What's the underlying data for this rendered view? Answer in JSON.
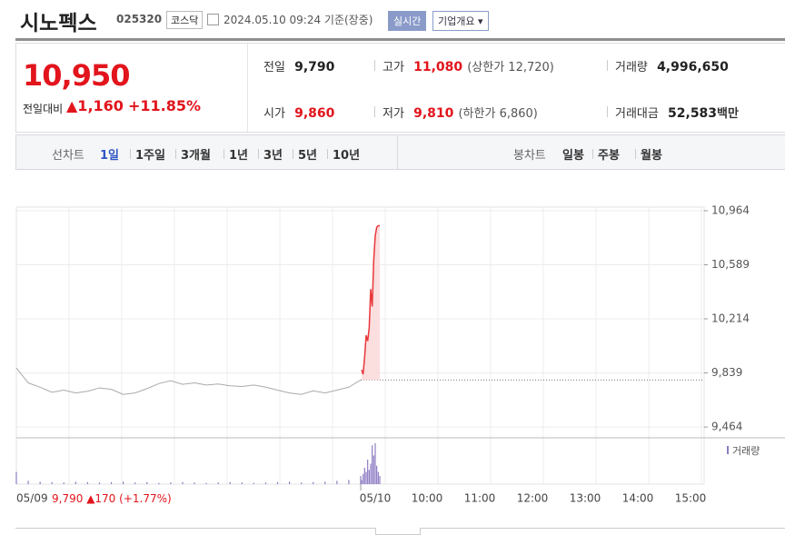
{
  "header": {
    "title": "시노펙스",
    "code": "025320",
    "market": "코스닥",
    "timestamp": "2024.05.10 09:24 기준(장중)",
    "realtime_button": "실시간",
    "company_button": "기업개요"
  },
  "summary": {
    "price": "10,950",
    "change_label": "전일대비",
    "change": "▲1,160",
    "change_rate": "+11.85%",
    "stats": [
      {
        "label": "전일",
        "value": "9,790"
      },
      {
        "label": "고가",
        "value": "11,080",
        "extra": "(상한가 12,720)"
      },
      {
        "label": "거래량",
        "value": "4,996,650"
      },
      {
        "label": "시가",
        "value": "9,860"
      },
      {
        "label": "저가",
        "value": "9,810",
        "extra": "(하한가 6,860)"
      },
      {
        "label": "거래대금",
        "value": "52,583",
        "unit": "백만"
      }
    ]
  },
  "tabs": {
    "line_chart_label": "선차트",
    "line_periods": [
      "1일",
      "1주일",
      "3개월",
      "1년",
      "3년",
      "5년",
      "10년"
    ],
    "candle_chart_label": "봉차트",
    "candle_periods": [
      "일봉",
      "주봉",
      "월봉"
    ]
  },
  "chart": {
    "type": "line",
    "ylim": [
      9389,
      10989
    ],
    "yticks": [
      {
        "value": 9464,
        "label": "9,464"
      },
      {
        "value": 9839,
        "label": "9,839"
      },
      {
        "value": 10214,
        "label": "10,214"
      },
      {
        "value": 10589,
        "label": "10,589"
      },
      {
        "value": 10964,
        "label": "10,964"
      }
    ],
    "x_labels": [
      "05/09",
      "05/10",
      "10:00",
      "11:00",
      "12:00",
      "13:00",
      "14:00",
      "15:00"
    ],
    "prev_close": 9790,
    "series": [
      {
        "color": "#aaaaaa",
        "values": [
          9874,
          9770,
          9740,
          9705,
          9720,
          9700,
          9712,
          9735,
          9725,
          9690,
          9700,
          9730,
          9765,
          9785,
          9760,
          9770,
          9755,
          9762,
          9750,
          9745,
          9755,
          9740,
          9720,
          9700,
          9690,
          9715,
          9700,
          9720,
          9740,
          9790
        ]
      },
      {
        "color": "#e8373b",
        "values": [
          9860,
          9830,
          9950,
          10100,
          10060,
          10150,
          10420,
          10300,
          10620,
          10790,
          10850,
          10860,
          10860
        ]
      }
    ],
    "volume": {
      "name": "거래량",
      "color": "#8e7cc3",
      "ylim": [
        0,
        100
      ],
      "prev_day_values": [
        30,
        8,
        6,
        5,
        4,
        6,
        5,
        4,
        5,
        6,
        4,
        5,
        3,
        4,
        5,
        4,
        3,
        4,
        5,
        4,
        3,
        4,
        5,
        6,
        4,
        5,
        6,
        8,
        10,
        20
      ],
      "today_values": [
        10,
        25,
        40,
        30,
        60,
        35,
        50,
        95,
        70,
        100,
        45,
        30,
        20
      ]
    },
    "footer": {
      "date": "05/09",
      "close": "9,790",
      "change": "▲170",
      "change_rate": "(+1.77%)"
    }
  }
}
